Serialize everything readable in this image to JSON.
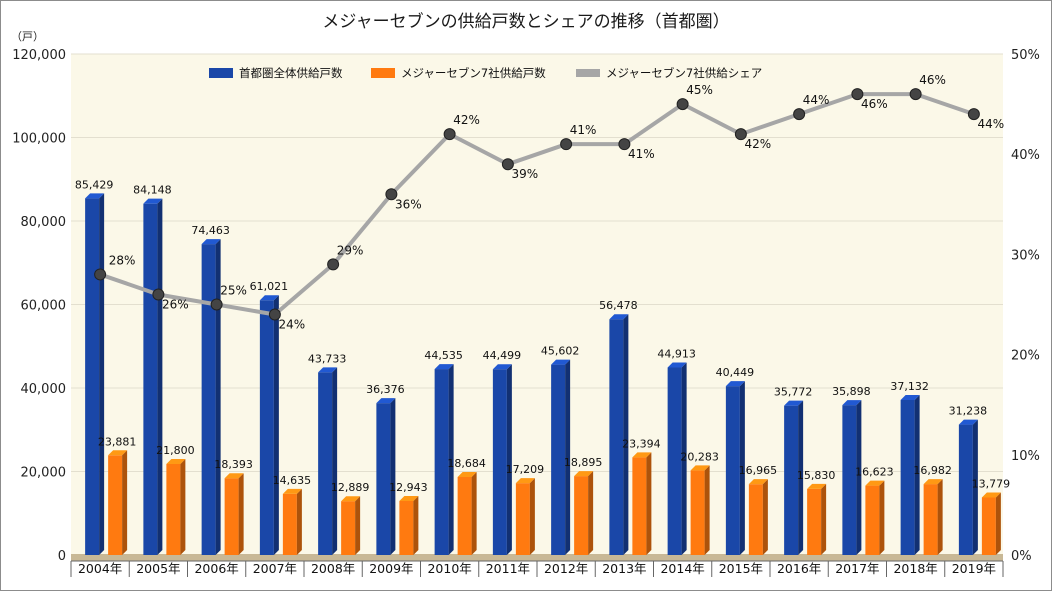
{
  "chart_data": {
    "type": "bar",
    "title": "メジャーセブンの供給戸数とシェアの推移（首都圏）",
    "y_left_unit": "（戸）",
    "y_left_ticks": [
      "0",
      "20,000",
      "40,000",
      "60,000",
      "80,000",
      "100,000",
      "120,000"
    ],
    "y_left_range": [
      0,
      120000
    ],
    "y_right_ticks": [
      "0%",
      "10%",
      "20%",
      "30%",
      "40%",
      "50%"
    ],
    "y_right_range": [
      0,
      50
    ],
    "grid": true,
    "legend_position": "top",
    "categories": [
      "2004年",
      "2005年",
      "2006年",
      "2007年",
      "2008年",
      "2009年",
      "2010年",
      "2011年",
      "2012年",
      "2013年",
      "2014年",
      "2015年",
      "2016年",
      "2017年",
      "2018年",
      "2019年"
    ],
    "series": [
      {
        "name": "首都圏全体供給戸数",
        "kind": "bar",
        "axis": "left",
        "color": "#1a47a8",
        "values": [
          85429,
          84148,
          74463,
          61021,
          43733,
          36376,
          44535,
          44499,
          45602,
          56478,
          44913,
          40449,
          35772,
          35898,
          37132,
          31238
        ],
        "labels": [
          "85,429",
          "84,148",
          "74,463",
          "61,021",
          "43,733",
          "36,376",
          "44,535",
          "44,499",
          "45,602",
          "56,478",
          "44,913",
          "40,449",
          "35,772",
          "35,898",
          "37,132",
          "31,238"
        ]
      },
      {
        "name": "メジャーセブン7社供給戸数",
        "kind": "bar",
        "axis": "left",
        "color": "#ff7a10",
        "values": [
          23881,
          21800,
          18393,
          14635,
          12889,
          12943,
          18684,
          17209,
          18895,
          23394,
          20283,
          16965,
          15830,
          16623,
          16982,
          13779
        ],
        "labels": [
          "23,881",
          "21,800",
          "18,393",
          "14,635",
          "12,889",
          "12,943",
          "18,684",
          "17,209",
          "18,895",
          "23,394",
          "20,283",
          "16,965",
          "15,830",
          "16,623",
          "16,982",
          "13,779"
        ]
      },
      {
        "name": "メジャーセブン7社供給シェア",
        "kind": "line",
        "axis": "right",
        "color": "#a6a6a6",
        "values": [
          28,
          26,
          25,
          24,
          29,
          36,
          42,
          39,
          41,
          41,
          45,
          42,
          44,
          46,
          46,
          44
        ],
        "labels": [
          "28%",
          "26%",
          "25%",
          "24%",
          "29%",
          "36%",
          "42%",
          "39%",
          "41%",
          "41%",
          "45%",
          "42%",
          "44%",
          "46%",
          "46%",
          "44%"
        ]
      }
    ],
    "colors": {
      "plot_background": "#fbf8e8",
      "floor": "#c8b896",
      "grid": "#e3dfcf",
      "marker": "#444444"
    }
  }
}
